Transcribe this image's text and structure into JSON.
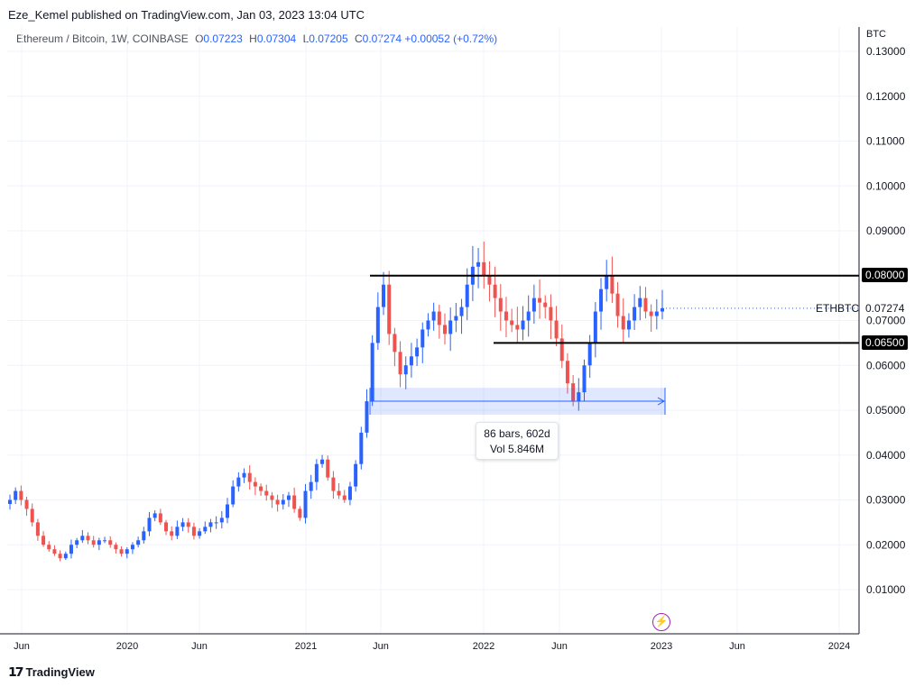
{
  "header": {
    "publisher": "Eze_Kemel published on TradingView.com, Jan 03, 2023 13:04 UTC",
    "symbol": "Ethereum / Bitcoin, 1W, COINBASE",
    "ohlc": {
      "o_label": "O",
      "o": "0.07223",
      "h_label": "H",
      "h": "0.07304",
      "l_label": "L",
      "l": "0.07205",
      "c_label": "C",
      "c": "0.07274",
      "change": "+0.00052 (+0.72%)"
    }
  },
  "axis_currency": "BTC",
  "symbol_short": "ETHBTC",
  "last_price": "0.07274",
  "levels": [
    {
      "label": "0.08000",
      "value": 0.08
    },
    {
      "label": "0.06500",
      "value": 0.065
    }
  ],
  "measure": {
    "bars": "86 bars, 602d",
    "vol": "Vol 5.846M"
  },
  "footer": {
    "brand": "TradingView"
  },
  "colors": {
    "up": "#2962ff",
    "down": "#ef5350",
    "level": "#000000",
    "measure_fill": "#2962ff"
  },
  "chart_data": {
    "type": "candlestick",
    "interval": "1W",
    "y_ticks": [
      "0.13000",
      "0.12000",
      "0.11000",
      "0.10000",
      "0.09000",
      "0.08000",
      "0.07000",
      "0.06000",
      "0.05000",
      "0.04000",
      "0.03000",
      "0.02000",
      "0.01000"
    ],
    "ylim": [
      -0.001,
      0.135
    ],
    "x_ticks": [
      "Jun",
      "2020",
      "Jun",
      "2021",
      "Jun",
      "2022",
      "Jun",
      "2023",
      "Jun",
      "2024"
    ],
    "close_path": [
      0.03,
      0.032,
      0.03,
      0.028,
      0.025,
      0.022,
      0.02,
      0.019,
      0.018,
      0.017,
      0.018,
      0.02,
      0.021,
      0.022,
      0.021,
      0.02,
      0.021,
      0.021,
      0.02,
      0.019,
      0.018,
      0.019,
      0.02,
      0.021,
      0.023,
      0.026,
      0.027,
      0.025,
      0.023,
      0.022,
      0.024,
      0.025,
      0.024,
      0.022,
      0.023,
      0.024,
      0.025,
      0.025,
      0.026,
      0.029,
      0.033,
      0.035,
      0.036,
      0.034,
      0.033,
      0.032,
      0.031,
      0.03,
      0.029,
      0.03,
      0.031,
      0.028,
      0.026,
      0.032,
      0.034,
      0.038,
      0.039,
      0.035,
      0.032,
      0.031,
      0.03,
      0.033,
      0.038,
      0.045,
      0.052,
      0.065,
      0.073,
      0.078,
      0.067,
      0.063,
      0.058,
      0.06,
      0.062,
      0.064,
      0.068,
      0.07,
      0.072,
      0.069,
      0.067,
      0.07,
      0.071,
      0.073,
      0.078,
      0.082,
      0.083,
      0.08,
      0.078,
      0.075,
      0.072,
      0.07,
      0.069,
      0.068,
      0.07,
      0.072,
      0.075,
      0.074,
      0.073,
      0.07,
      0.066,
      0.061,
      0.056,
      0.052,
      0.054,
      0.06,
      0.065,
      0.072,
      0.077,
      0.08,
      0.076,
      0.071,
      0.068,
      0.07,
      0.073,
      0.075,
      0.072,
      0.071,
      0.072,
      0.07274
    ],
    "price_lines": [
      0.08,
      0.065
    ],
    "measure_range": {
      "low": 0.049,
      "high": 0.055,
      "bars": 86,
      "days": 602,
      "volume": "5.846M"
    }
  }
}
